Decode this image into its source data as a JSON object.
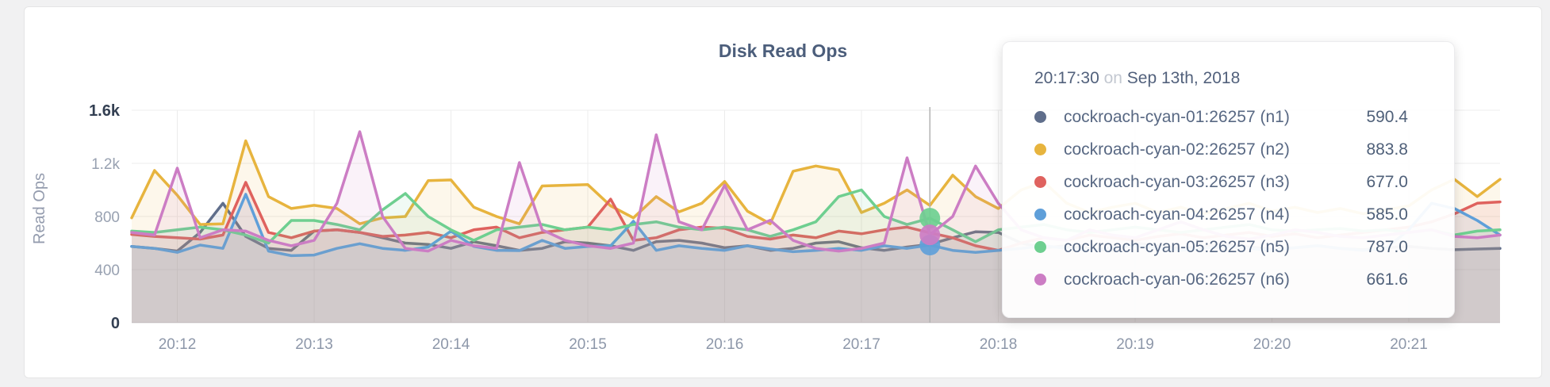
{
  "page": {
    "title": "Disk Read Ops"
  },
  "axis": {
    "ylabel": "Read Ops"
  },
  "chart_data": {
    "type": "area",
    "title": "Disk Read Ops",
    "ylabel": "Read Ops",
    "xlabel": "",
    "grid": true,
    "legend_position": "tooltip",
    "ylim": [
      0,
      1600
    ],
    "x_start": "20:11:40",
    "x_step_seconds": 10,
    "x_ticks": [
      "20:12",
      "20:13",
      "20:14",
      "20:15",
      "20:16",
      "20:17",
      "20:18",
      "20:19",
      "20:20",
      "20:21"
    ],
    "y_ticks": [
      {
        "label": "0",
        "value": 0,
        "emphasis": true
      },
      {
        "label": "400",
        "value": 400,
        "emphasis": false
      },
      {
        "label": "800",
        "value": 800,
        "emphasis": false
      },
      {
        "label": "1.2k",
        "value": 1200,
        "emphasis": false
      },
      {
        "label": "1.6k",
        "value": 1600,
        "emphasis": true
      }
    ],
    "series": [
      {
        "id": "n1",
        "name": "cockroach-cyan-01:26257 (n1)",
        "color": "#5f6e8b",
        "values": [
          575,
          560,
          540,
          680,
          900,
          650,
          560,
          545,
          690,
          700,
          680,
          640,
          600,
          590,
          560,
          610,
          580,
          545,
          560,
          610,
          600,
          580,
          545,
          610,
          620,
          600,
          565,
          580,
          545,
          560,
          600,
          610,
          565,
          545,
          570,
          590.4,
          640,
          685,
          680,
          600,
          565,
          580,
          560,
          545,
          600,
          580,
          560,
          575,
          590,
          570,
          555,
          565,
          580,
          560,
          550,
          565,
          575,
          560,
          550,
          555,
          560
        ]
      },
      {
        "id": "n2",
        "name": "cockroach-cyan-02:26257 (n2)",
        "color": "#e7b43e",
        "values": [
          790,
          1146,
          960,
          740,
          745,
          1370,
          950,
          860,
          884,
          860,
          745,
          790,
          800,
          1070,
          1075,
          870,
          800,
          745,
          1030,
          1035,
          1040,
          880,
          790,
          950,
          835,
          900,
          1063,
          840,
          745,
          1141,
          1180,
          1150,
          830,
          900,
          1000,
          883.8,
          1111,
          950,
          860,
          1000,
          1060,
          900,
          830,
          870,
          900,
          830,
          870,
          820,
          860,
          900,
          840,
          870,
          830,
          860,
          820,
          850,
          880,
          1000,
          1080,
          950,
          1080
        ]
      },
      {
        "id": "n3",
        "name": "cockroach-cyan-03:26257 (n3)",
        "color": "#df625e",
        "values": [
          665,
          650,
          640,
          630,
          660,
          1057,
          680,
          640,
          690,
          700,
          680,
          650,
          660,
          680,
          640,
          700,
          720,
          640,
          680,
          700,
          720,
          931,
          620,
          640,
          700,
          720,
          711,
          650,
          630,
          660,
          640,
          690,
          670,
          700,
          720,
          677,
          640,
          580,
          545,
          600,
          640,
          620,
          660,
          640,
          620,
          650,
          670,
          640,
          660,
          680,
          650,
          670,
          640,
          660,
          680,
          700,
          720,
          760,
          820,
          900,
          910
        ]
      },
      {
        "id": "n4",
        "name": "cockroach-cyan-04:26257 (n4)",
        "color": "#5f9fd9",
        "values": [
          575,
          560,
          530,
          585,
          560,
          967,
          540,
          505,
          510,
          560,
          595,
          560,
          545,
          570,
          690,
          575,
          545,
          543,
          620,
          560,
          575,
          580,
          764,
          545,
          580,
          560,
          545,
          580,
          555,
          535,
          545,
          560,
          545,
          580,
          560,
          585,
          545,
          530,
          545,
          560,
          580,
          560,
          545,
          565,
          580,
          560,
          545,
          560,
          575,
          560,
          545,
          565,
          580,
          560,
          545,
          560,
          700,
          900,
          860,
          770,
          660
        ]
      },
      {
        "id": "n5",
        "name": "cockroach-cyan-05:26257 (n5)",
        "color": "#6ecf90",
        "values": [
          690,
          680,
          700,
          720,
          700,
          660,
          600,
          770,
          770,
          740,
          700,
          850,
          973,
          800,
          700,
          620,
          700,
          720,
          740,
          700,
          720,
          700,
          740,
          760,
          720,
          700,
          720,
          700,
          650,
          700,
          760,
          950,
          1000,
          800,
          740,
          787,
          700,
          610,
          700,
          720,
          740,
          700,
          680,
          700,
          720,
          700,
          680,
          700,
          720,
          740,
          700,
          690,
          700,
          710,
          690,
          700,
          680,
          700,
          660,
          690,
          700
        ]
      },
      {
        "id": "n6",
        "name": "cockroach-cyan-06:26257 (n6)",
        "color": "#cc7dc4",
        "values": [
          680,
          660,
          1164,
          640,
          700,
          690,
          620,
          580,
          620,
          900,
          1439,
          800,
          560,
          540,
          620,
          580,
          560,
          1206,
          700,
          620,
          580,
          560,
          600,
          1415,
          760,
          700,
          1035,
          700,
          772,
          620,
          560,
          540,
          560,
          600,
          1242,
          661.6,
          800,
          1180,
          900,
          700,
          640,
          620,
          700,
          660,
          640,
          700,
          760,
          700,
          650,
          630,
          660,
          700,
          680,
          650,
          640,
          660,
          680,
          700,
          650,
          640,
          660
        ]
      }
    ]
  },
  "hover": {
    "time": "20:17:30",
    "index": 35,
    "dots": [
      {
        "series": "n4",
        "value": 585.0
      },
      {
        "series": "n5",
        "value": 787.0
      },
      {
        "series": "n6",
        "value": 661.6
      }
    ]
  },
  "tooltip": {
    "time": "20:17:30",
    "conjunction": "on",
    "date": "Sep 13th, 2018",
    "rows": [
      {
        "series": "n1",
        "label": "cockroach-cyan-01:26257 (n1)",
        "value": "590.4"
      },
      {
        "series": "n2",
        "label": "cockroach-cyan-02:26257 (n2)",
        "value": "883.8"
      },
      {
        "series": "n3",
        "label": "cockroach-cyan-03:26257 (n3)",
        "value": "677.0"
      },
      {
        "series": "n4",
        "label": "cockroach-cyan-04:26257 (n4)",
        "value": "585.0"
      },
      {
        "series": "n5",
        "label": "cockroach-cyan-05:26257 (n5)",
        "value": "787.0"
      },
      {
        "series": "n6",
        "label": "cockroach-cyan-06:26257 (n6)",
        "value": "661.6"
      }
    ]
  },
  "style": {
    "gridline_color": "#ececec",
    "axisline_color": "#dcdcdc",
    "hoverline_color": "#b3b3b3",
    "area_opacity": 0.1
  }
}
